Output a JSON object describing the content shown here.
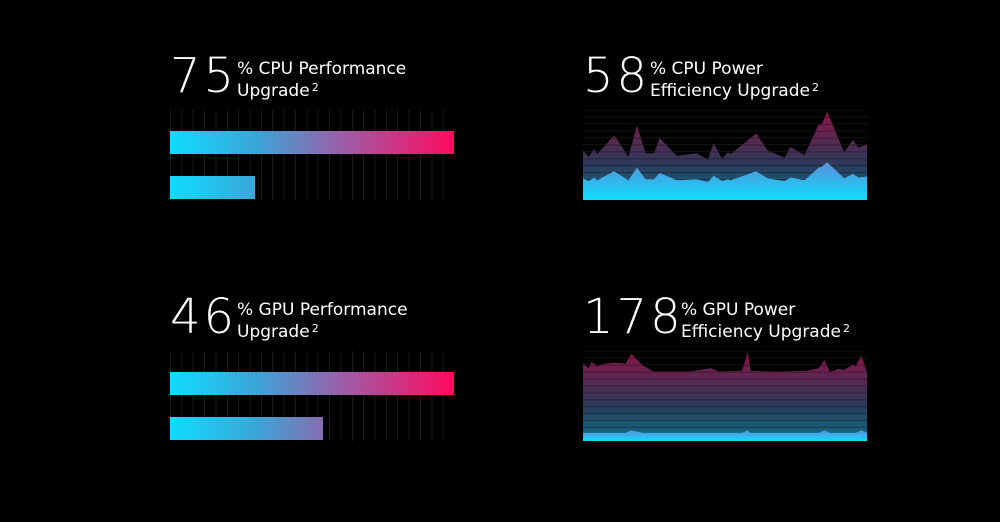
{
  "colors": {
    "cyan": "#0fdcff",
    "magenta": "#ff0a5e",
    "background": "#000000"
  },
  "panels": [
    {
      "id": "cpu-performance",
      "value": "75",
      "label_line1": "% CPU Performance",
      "label_line2": "Upgrade",
      "footnote": "2",
      "chart_data": {
        "type": "bar",
        "bars": [
          {
            "fraction": 1.0
          },
          {
            "fraction": 0.3
          }
        ]
      }
    },
    {
      "id": "cpu-power-efficiency",
      "value": "58",
      "label_line1": "% CPU Power",
      "label_line2": "Efficiency Upgrade",
      "footnote": "2",
      "chart_data": {
        "type": "area",
        "ylim": [
          0,
          100
        ],
        "x": [
          0,
          2,
          4,
          5,
          11,
          16,
          19,
          22,
          25,
          27,
          33,
          40,
          44,
          46,
          49,
          51,
          52,
          61,
          65,
          71,
          73,
          78,
          83,
          84,
          86,
          92,
          95,
          97,
          100
        ],
        "series": [
          {
            "values": [
              55,
              48,
              57,
              51,
              72,
              48,
              83,
              52,
              52,
              69,
              49,
              52,
              45,
              63,
              46,
              53,
              51,
              74,
              55,
              47,
              59,
              50,
              84,
              84,
              98,
              53,
              67,
              58,
              62
            ]
          },
          {
            "values": [
              24,
              21,
              25,
              22,
              32,
              22,
              36,
              23,
              23,
              30,
              22,
              23,
              20,
              27,
              21,
              23,
              22,
              32,
              24,
              21,
              25,
              22,
              36,
              37,
              42,
              24,
              29,
              25,
              26
            ]
          }
        ]
      }
    },
    {
      "id": "gpu-performance",
      "value": "46",
      "label_line1": "% GPU Performance",
      "label_line2": "Upgrade",
      "footnote": "2",
      "chart_data": {
        "type": "bar",
        "bars": [
          {
            "fraction": 1.0
          },
          {
            "fraction": 0.54
          }
        ]
      }
    },
    {
      "id": "gpu-power-efficiency",
      "value": "178",
      "label_line1": "% GPU Power",
      "label_line2": "Efficiency Upgrade",
      "footnote": "2",
      "chart_data": {
        "type": "area",
        "ylim": [
          0,
          100
        ],
        "x": [
          0,
          2,
          3,
          5,
          8,
          11,
          15,
          17,
          21,
          25,
          32,
          37,
          45,
          48,
          56,
          58,
          59,
          67,
          79,
          83,
          85,
          87,
          90,
          92,
          95,
          96,
          98,
          100
        ],
        "series": [
          {
            "values": [
              86,
              81,
              88,
              83,
              86,
              87,
              86,
              97,
              84,
              77,
              77,
              77,
              81,
              77,
              78,
              99,
              78,
              77,
              78,
              81,
              90,
              77,
              80,
              79,
              85,
              83,
              95,
              76
            ]
          },
          {
            "values": [
              9,
              9,
              9,
              9,
              9,
              9,
              9,
              12,
              9,
              9,
              9,
              9,
              9,
              9,
              9,
              12,
              9,
              9,
              9,
              9,
              12,
              9,
              9,
              9,
              9,
              9,
              12,
              9
            ]
          }
        ]
      }
    }
  ]
}
